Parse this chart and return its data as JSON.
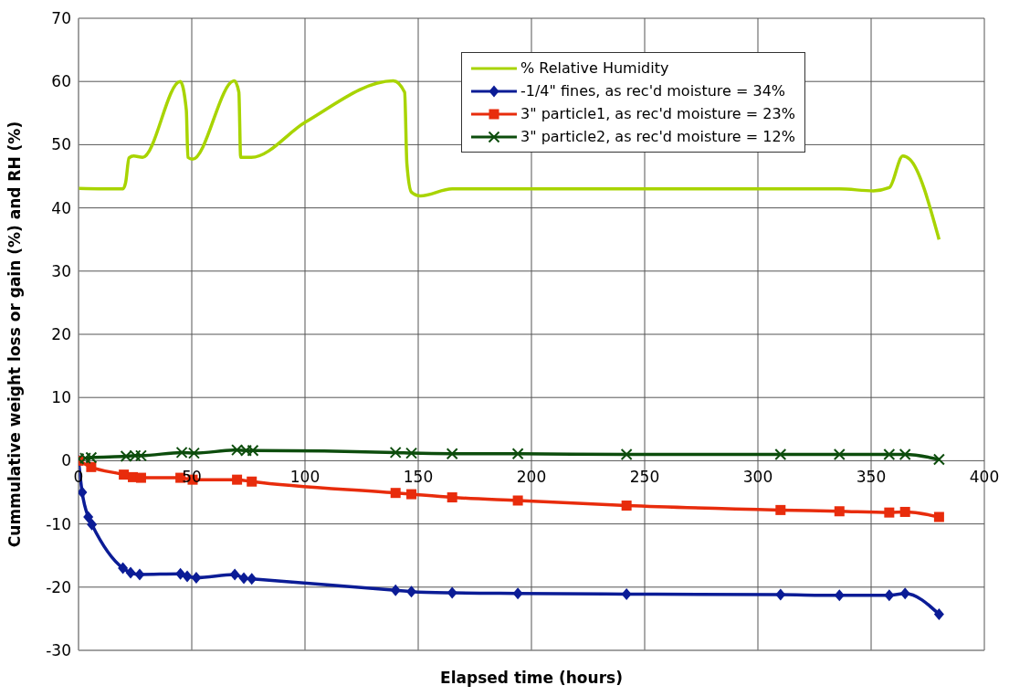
{
  "chart_data": {
    "type": "line",
    "xlabel": "Elapsed time (hours)",
    "ylabel": "Cummulative weight loss or gain (%) and RH (%)",
    "xlim": [
      0,
      400
    ],
    "xticks": [
      0,
      50,
      100,
      150,
      200,
      250,
      300,
      350,
      400
    ],
    "ylim": [
      -30,
      70
    ],
    "yticks": [
      -30,
      -20,
      -10,
      0,
      10,
      20,
      30,
      40,
      50,
      60,
      70
    ],
    "grid": true,
    "legend": "top right",
    "line_style": "solid",
    "series": [
      {
        "name": "% Relative Humidity",
        "color": "#a8d400",
        "marker": "none",
        "x": [
          0,
          19.6,
          20.8,
          22.3,
          24.3,
          28.3,
          44.9,
          47.6,
          48.3,
          50.3,
          68.8,
          70.8,
          71.6,
          76.3,
          100.3,
          139,
          144,
          145,
          147,
          151,
          165,
          194,
          242,
          310,
          336,
          351,
          358,
          364,
          367,
          380
        ],
        "values": [
          43.1,
          43,
          44,
          47.9,
          48.2,
          48,
          60,
          55.5,
          48,
          47.7,
          60.1,
          58.3,
          48,
          48,
          53.6,
          60.1,
          58.3,
          47,
          42.5,
          41.9,
          43,
          43,
          43,
          43,
          43,
          42.7,
          43.2,
          48.2,
          47.7,
          35
        ]
      },
      {
        "name": "-1/4\" fines, as rec'd moisture = 34%",
        "color": "#0b1c96",
        "marker": "diamond",
        "x": [
          0,
          1.6,
          4.3,
          5.9,
          19.6,
          23,
          27,
          45,
          48,
          52,
          69,
          73,
          76.5,
          140,
          147,
          165,
          194,
          242,
          310,
          336,
          358,
          365,
          380
        ],
        "values": [
          0,
          -5,
          -8.9,
          -10.1,
          -17,
          -17.7,
          -18,
          -17.9,
          -18.3,
          -18.5,
          -18,
          -18.6,
          -18.7,
          -20.5,
          -20.7,
          -20.9,
          -21,
          -21.1,
          -21.2,
          -21.3,
          -21.3,
          -21,
          -24.3
        ]
      },
      {
        "name": "3\" particle1, as rec'd moisture = 23%",
        "color": "#e82c0c",
        "marker": "square",
        "x": [
          0,
          5.6,
          20,
          24,
          27.6,
          45,
          50.4,
          70,
          76.5,
          140,
          147,
          165,
          194,
          242,
          310,
          336,
          358,
          365,
          380
        ],
        "values": [
          0,
          -1,
          -2.2,
          -2.6,
          -2.7,
          -2.7,
          -3,
          -3,
          -3.3,
          -5.1,
          -5.3,
          -5.8,
          -6.3,
          -7.1,
          -7.8,
          -8,
          -8.2,
          -8.1,
          -8.9
        ]
      },
      {
        "name": "3\" particle2, as rec'd moisture = 12%",
        "color": "#0d4d0d",
        "marker": "cross",
        "x": [
          0,
          3,
          5.6,
          21,
          25,
          27.6,
          45.6,
          51,
          70,
          74,
          77,
          140,
          147,
          165,
          194,
          242,
          310,
          336,
          358,
          365,
          380
        ],
        "values": [
          0.3,
          0.4,
          0.5,
          0.7,
          0.8,
          0.8,
          1.3,
          1.2,
          1.7,
          1.6,
          1.6,
          1.3,
          1.2,
          1.1,
          1.1,
          1,
          1,
          1,
          1,
          1,
          0.2
        ]
      }
    ]
  }
}
